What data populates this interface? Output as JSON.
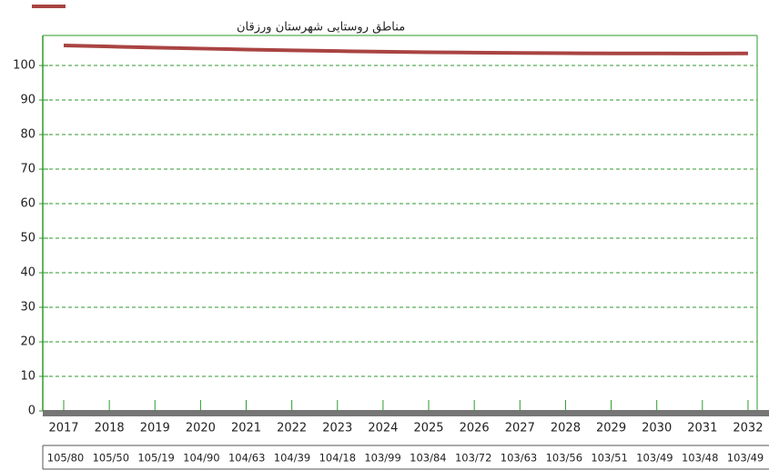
{
  "chart_data": {
    "type": "line",
    "categories": [
      "2017",
      "2018",
      "2019",
      "2020",
      "2021",
      "2022",
      "2023",
      "2024",
      "2025",
      "2026",
      "2027",
      "2028",
      "2029",
      "2030",
      "2031",
      "2032"
    ],
    "series": [
      {
        "name": "مناطق روستایی شهرستان ورزقان",
        "color": "#a94442",
        "values": [
          105.8,
          105.5,
          105.19,
          104.9,
          104.63,
          104.39,
          104.18,
          103.99,
          103.84,
          103.72,
          103.63,
          103.56,
          103.51,
          103.49,
          103.48,
          103.49
        ],
        "value_labels": [
          "105/80",
          "105/50",
          "105/19",
          "104/90",
          "104/63",
          "104/39",
          "104/18",
          "103/99",
          "103/84",
          "103/72",
          "103/63",
          "103/56",
          "103/51",
          "103/49",
          "103/48",
          "103/49"
        ]
      }
    ],
    "ylim": [
      0,
      108.7
    ],
    "yticks": [
      0,
      10,
      20,
      30,
      40,
      50,
      60,
      70,
      80,
      90,
      100
    ],
    "grid": true,
    "grid_color": "#2e9a2e"
  }
}
